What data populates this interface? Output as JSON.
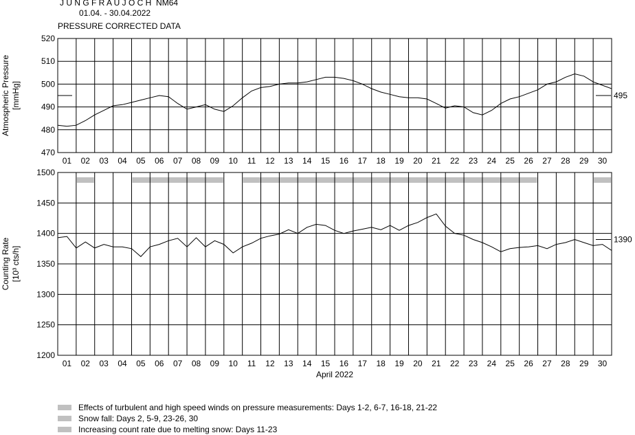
{
  "header": {
    "station_spaced": "J U N G F R A U J O C H",
    "station_code": "NM64",
    "date_range": "01.04. - 30.04.2022",
    "subtitle": "PRESSURE CORRECTED DATA"
  },
  "colors": {
    "line": "#000000",
    "band": "#c0c0c0",
    "grid": "#000000"
  },
  "chart_data": [
    {
      "type": "line",
      "name": "pressure",
      "ylabel": [
        "Atmospheric Pressure",
        "[mmHg]"
      ],
      "ylim": [
        470,
        520
      ],
      "yticks": [
        520,
        510,
        500,
        490,
        480,
        470
      ],
      "categories": [
        "01",
        "02",
        "03",
        "04",
        "05",
        "06",
        "07",
        "08",
        "09",
        "10",
        "11",
        "12",
        "13",
        "14",
        "15",
        "16",
        "17",
        "18",
        "19",
        "20",
        "21",
        "22",
        "23",
        "24",
        "25",
        "26",
        "27",
        "28",
        "29",
        "30"
      ],
      "reference": {
        "value": 495,
        "label": "495"
      },
      "x": [
        0,
        0.5,
        1,
        1.5,
        2,
        2.5,
        3,
        3.5,
        4,
        4.5,
        5,
        5.5,
        6,
        6.5,
        7,
        7.5,
        8,
        8.5,
        9,
        9.5,
        10,
        10.5,
        11,
        11.5,
        12,
        12.5,
        13,
        13.5,
        14,
        14.5,
        15,
        15.5,
        16,
        16.5,
        17,
        17.5,
        18,
        18.5,
        19,
        19.5,
        20,
        20.5,
        21,
        21.5,
        22,
        22.5,
        23,
        23.5,
        24,
        24.5,
        25,
        25.5,
        26,
        26.5,
        27,
        27.5,
        28,
        28.5,
        29,
        29.5,
        30
      ],
      "values": [
        482,
        481.5,
        482,
        484,
        486.5,
        488.5,
        490.5,
        491,
        492,
        493,
        494,
        495,
        494.5,
        491.5,
        489,
        490,
        491,
        489,
        488,
        490.5,
        494,
        497,
        498.5,
        499,
        500,
        500.5,
        500.5,
        501,
        502,
        503,
        503,
        502.5,
        501.5,
        500,
        498,
        496.5,
        495.5,
        494.5,
        494,
        494,
        493.5,
        491.5,
        489.5,
        490.5,
        490,
        487.5,
        486.5,
        488.5,
        491.5,
        493.5,
        494.5,
        496,
        497.5,
        500,
        501,
        503,
        504.5,
        503.5,
        501,
        499.5,
        498
      ]
    },
    {
      "type": "line",
      "name": "counting_rate",
      "ylabel": [
        "Counting Rate",
        "[10³ cts/h]"
      ],
      "ylim": [
        1200,
        1500
      ],
      "yticks": [
        1500,
        1450,
        1400,
        1350,
        1300,
        1250,
        1200
      ],
      "categories": [
        "01",
        "02",
        "03",
        "04",
        "05",
        "06",
        "07",
        "08",
        "09",
        "10",
        "11",
        "12",
        "13",
        "14",
        "15",
        "16",
        "17",
        "18",
        "19",
        "20",
        "21",
        "22",
        "23",
        "24",
        "25",
        "26",
        "27",
        "28",
        "29",
        "30"
      ],
      "xlabel": "April 2022",
      "reference": {
        "value": 1390,
        "label": "1390"
      },
      "bands_days": [
        [
          2,
          2
        ],
        [
          5,
          9
        ],
        [
          11,
          26
        ],
        [
          30,
          30
        ]
      ],
      "x": [
        0,
        0.5,
        1,
        1.5,
        2,
        2.5,
        3,
        3.5,
        4,
        4.5,
        5,
        5.5,
        6,
        6.5,
        7,
        7.5,
        8,
        8.5,
        9,
        9.5,
        10,
        10.5,
        11,
        11.5,
        12,
        12.5,
        13,
        13.5,
        14,
        14.5,
        15,
        15.5,
        16,
        16.5,
        17,
        17.5,
        18,
        18.5,
        19,
        19.5,
        20,
        20.5,
        21,
        21.5,
        22,
        22.5,
        23,
        23.5,
        24,
        24.5,
        25,
        25.5,
        26,
        26.5,
        27,
        27.5,
        28,
        28.5,
        29,
        29.5,
        30
      ],
      "values": [
        1393,
        1395,
        1376,
        1386,
        1376,
        1382,
        1378,
        1378,
        1375,
        1362,
        1378,
        1382,
        1388,
        1392,
        1378,
        1393,
        1378,
        1388,
        1382,
        1368,
        1378,
        1384,
        1392,
        1396,
        1399,
        1406,
        1400,
        1410,
        1415,
        1413,
        1405,
        1400,
        1404,
        1407,
        1410,
        1406,
        1413,
        1405,
        1413,
        1418,
        1426,
        1432,
        1412,
        1400,
        1397,
        1390,
        1385,
        1378,
        1370,
        1375,
        1377,
        1378,
        1380,
        1375,
        1382,
        1385,
        1390,
        1385,
        1380,
        1382,
        1372
      ]
    }
  ],
  "legend": [
    "Effects of turbulent and high speed winds on pressure measurements: Days 1-2, 6-7, 16-18, 21-22",
    "Snow fall: Days 2, 5-9, 23-26, 30",
    "Increasing count rate due to melting snow: Days 11-23"
  ]
}
